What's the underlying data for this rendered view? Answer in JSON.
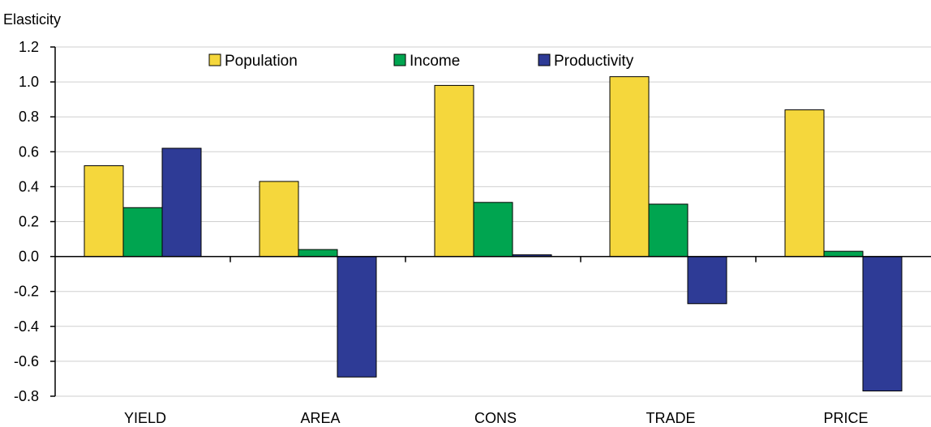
{
  "chart_data": {
    "type": "bar",
    "title": "",
    "xlabel": "",
    "ylabel": "Elasticity",
    "ylim": [
      -0.8,
      1.2
    ],
    "yticks": [
      1.2,
      1.0,
      0.8,
      0.6,
      0.4,
      0.2,
      0.0,
      -0.2,
      -0.4,
      -0.6,
      -0.8
    ],
    "ytick_labels": [
      "1.2",
      "1.0",
      "0.8",
      "0.6",
      "0.4",
      "0.2",
      "0.0",
      "-0.2",
      "-0.4",
      "-0.6",
      "-0.8"
    ],
    "grid": true,
    "legend_position": "top-center",
    "categories": [
      "YIELD",
      "AREA",
      "CONS",
      "TRADE",
      "PRICE"
    ],
    "series": [
      {
        "name": "Population",
        "color": "#f5d73c",
        "values": [
          0.52,
          0.43,
          0.98,
          1.03,
          0.84
        ]
      },
      {
        "name": "Income",
        "color": "#00a550",
        "values": [
          0.28,
          0.04,
          0.31,
          0.3,
          0.03
        ]
      },
      {
        "name": "Productivity",
        "color": "#2e3b96",
        "values": [
          0.62,
          -0.69,
          0.01,
          -0.27,
          -0.77
        ]
      }
    ]
  }
}
